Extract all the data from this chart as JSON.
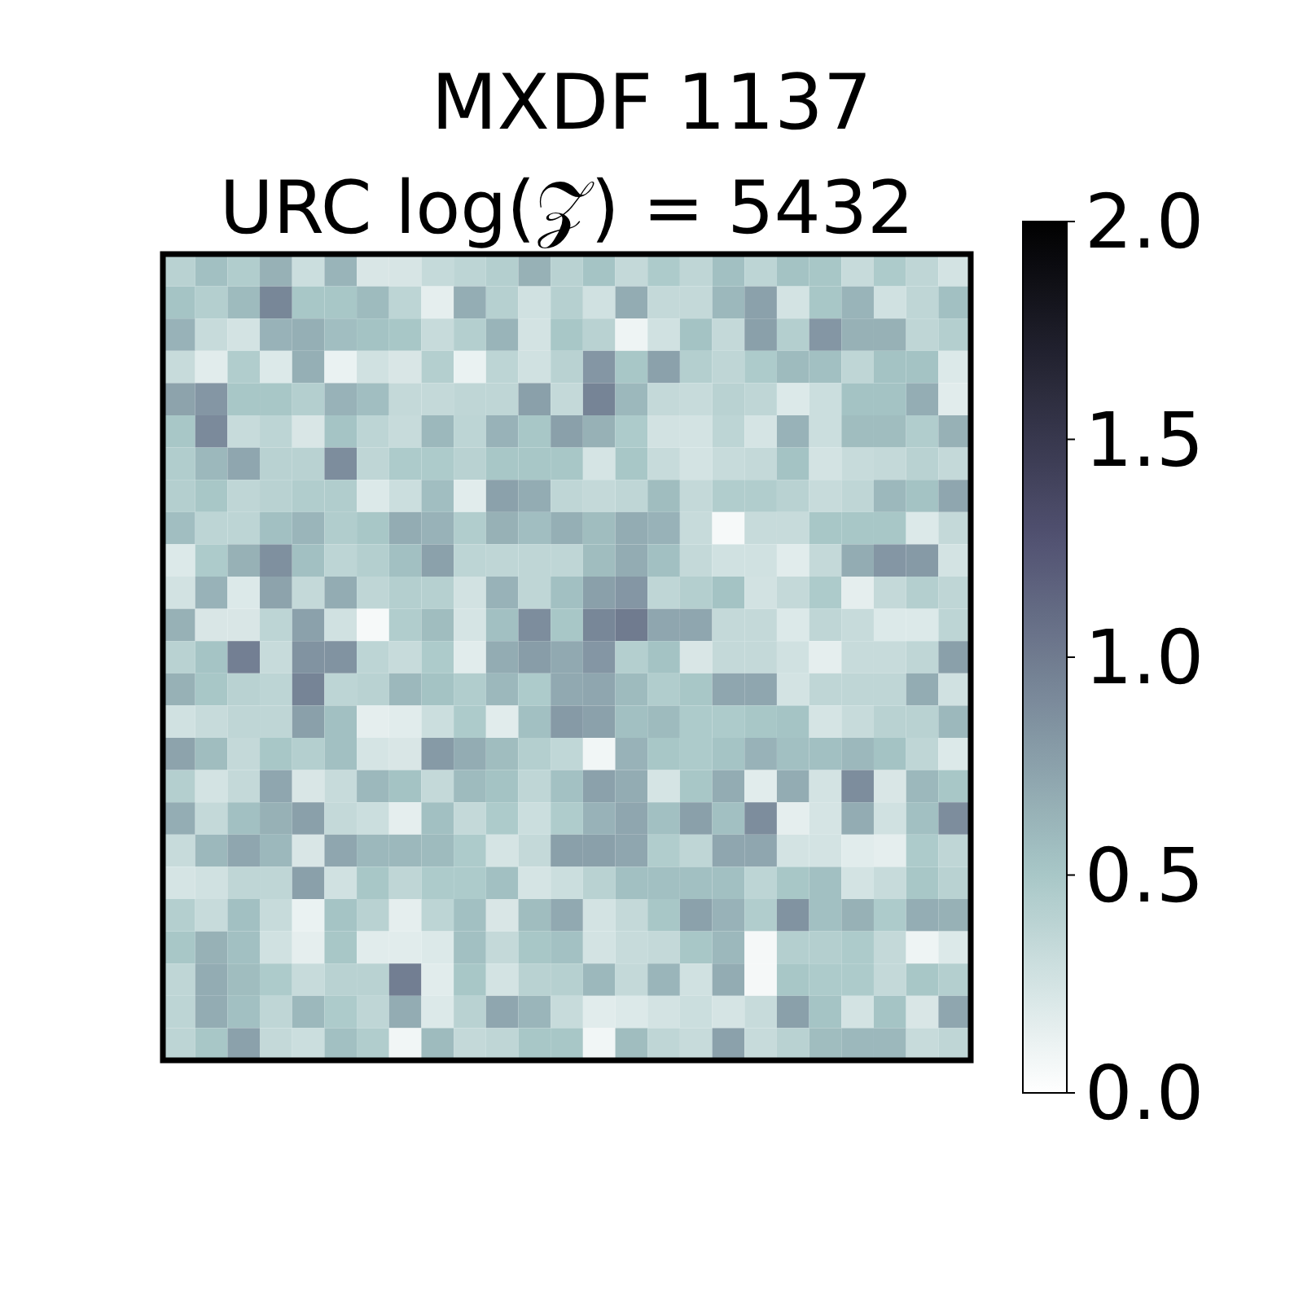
{
  "chart_data": {
    "type": "heatmap",
    "title": "MXDF 1137",
    "subtitle": "URC log(𝒵) = 5432",
    "categories": [
      null,
      null,
      null,
      null,
      null,
      null,
      null,
      null,
      null,
      null,
      null,
      null,
      null,
      null,
      null,
      null,
      null,
      null,
      null,
      null,
      null,
      null,
      null,
      null,
      null
    ],
    "y_categories": [
      null,
      null,
      null,
      null,
      null,
      null,
      null,
      null,
      null,
      null,
      null,
      null,
      null,
      null,
      null,
      null,
      null,
      null,
      null,
      null,
      null,
      null,
      null,
      null,
      null
    ],
    "cells": [
      [
        0.4,
        0.55,
        0.45,
        0.65,
        0.3,
        0.63,
        0.22,
        0.23,
        0.33,
        0.38,
        0.43,
        0.65,
        0.4,
        0.52,
        0.34,
        0.47,
        0.37,
        0.55,
        0.38,
        0.53,
        0.5,
        0.32,
        0.47,
        0.37,
        0.25
      ],
      [
        0.52,
        0.43,
        0.58,
        0.92,
        0.5,
        0.5,
        0.58,
        0.38,
        0.15,
        0.67,
        0.42,
        0.27,
        0.42,
        0.27,
        0.68,
        0.34,
        0.34,
        0.6,
        0.75,
        0.25,
        0.5,
        0.63,
        0.27,
        0.37,
        0.55
      ],
      [
        0.64,
        0.32,
        0.25,
        0.64,
        0.66,
        0.56,
        0.53,
        0.5,
        0.32,
        0.43,
        0.63,
        0.25,
        0.5,
        0.4,
        0.1,
        0.27,
        0.53,
        0.34,
        0.76,
        0.43,
        0.82,
        0.65,
        0.65,
        0.37,
        0.43
      ],
      [
        0.32,
        0.17,
        0.45,
        0.2,
        0.66,
        0.12,
        0.27,
        0.22,
        0.43,
        0.12,
        0.38,
        0.27,
        0.4,
        0.82,
        0.5,
        0.75,
        0.43,
        0.37,
        0.47,
        0.58,
        0.55,
        0.37,
        0.53,
        0.53,
        0.2
      ],
      [
        0.74,
        0.82,
        0.5,
        0.5,
        0.43,
        0.64,
        0.56,
        0.34,
        0.34,
        0.37,
        0.37,
        0.76,
        0.34,
        0.94,
        0.6,
        0.34,
        0.32,
        0.4,
        0.37,
        0.2,
        0.3,
        0.53,
        0.53,
        0.67,
        0.17
      ],
      [
        0.5,
        0.9,
        0.32,
        0.38,
        0.22,
        0.52,
        0.38,
        0.32,
        0.6,
        0.38,
        0.64,
        0.5,
        0.76,
        0.65,
        0.47,
        0.26,
        0.25,
        0.38,
        0.24,
        0.64,
        0.3,
        0.57,
        0.57,
        0.45,
        0.65
      ],
      [
        0.45,
        0.6,
        0.72,
        0.4,
        0.4,
        0.88,
        0.37,
        0.47,
        0.47,
        0.4,
        0.5,
        0.5,
        0.5,
        0.24,
        0.5,
        0.32,
        0.25,
        0.32,
        0.34,
        0.53,
        0.25,
        0.32,
        0.34,
        0.4,
        0.34
      ],
      [
        0.43,
        0.5,
        0.37,
        0.4,
        0.45,
        0.45,
        0.2,
        0.3,
        0.56,
        0.17,
        0.75,
        0.68,
        0.37,
        0.34,
        0.37,
        0.57,
        0.34,
        0.45,
        0.45,
        0.4,
        0.32,
        0.37,
        0.6,
        0.53,
        0.72
      ],
      [
        0.56,
        0.38,
        0.38,
        0.55,
        0.62,
        0.45,
        0.5,
        0.68,
        0.64,
        0.45,
        0.65,
        0.56,
        0.66,
        0.57,
        0.68,
        0.64,
        0.32,
        0.05,
        0.32,
        0.32,
        0.5,
        0.5,
        0.5,
        0.2,
        0.34
      ],
      [
        0.2,
        0.47,
        0.65,
        0.86,
        0.55,
        0.38,
        0.43,
        0.55,
        0.75,
        0.38,
        0.37,
        0.37,
        0.37,
        0.57,
        0.68,
        0.55,
        0.34,
        0.27,
        0.27,
        0.17,
        0.34,
        0.68,
        0.82,
        0.8,
        0.25
      ],
      [
        0.26,
        0.64,
        0.2,
        0.74,
        0.34,
        0.68,
        0.37,
        0.43,
        0.42,
        0.26,
        0.64,
        0.37,
        0.55,
        0.76,
        0.82,
        0.37,
        0.43,
        0.53,
        0.26,
        0.34,
        0.47,
        0.15,
        0.34,
        0.43,
        0.37
      ],
      [
        0.65,
        0.22,
        0.22,
        0.38,
        0.75,
        0.27,
        0.05,
        0.45,
        0.57,
        0.24,
        0.55,
        0.88,
        0.5,
        0.92,
        1.0,
        0.72,
        0.72,
        0.34,
        0.34,
        0.2,
        0.37,
        0.32,
        0.2,
        0.2,
        0.38
      ],
      [
        0.4,
        0.52,
        0.97,
        0.32,
        0.84,
        0.84,
        0.38,
        0.32,
        0.47,
        0.17,
        0.68,
        0.78,
        0.7,
        0.82,
        0.43,
        0.53,
        0.22,
        0.34,
        0.34,
        0.27,
        0.15,
        0.32,
        0.32,
        0.37,
        0.76
      ],
      [
        0.65,
        0.5,
        0.4,
        0.38,
        0.94,
        0.38,
        0.4,
        0.6,
        0.53,
        0.45,
        0.6,
        0.47,
        0.7,
        0.72,
        0.58,
        0.45,
        0.5,
        0.72,
        0.72,
        0.25,
        0.37,
        0.37,
        0.37,
        0.68,
        0.27
      ],
      [
        0.27,
        0.32,
        0.37,
        0.37,
        0.76,
        0.55,
        0.15,
        0.17,
        0.3,
        0.47,
        0.17,
        0.55,
        0.8,
        0.75,
        0.55,
        0.58,
        0.47,
        0.47,
        0.5,
        0.52,
        0.24,
        0.32,
        0.4,
        0.4,
        0.6
      ],
      [
        0.74,
        0.57,
        0.34,
        0.5,
        0.43,
        0.55,
        0.24,
        0.22,
        0.8,
        0.68,
        0.57,
        0.43,
        0.36,
        0.08,
        0.64,
        0.5,
        0.47,
        0.52,
        0.64,
        0.55,
        0.55,
        0.6,
        0.53,
        0.37,
        0.2
      ],
      [
        0.43,
        0.25,
        0.34,
        0.72,
        0.22,
        0.32,
        0.6,
        0.53,
        0.34,
        0.58,
        0.53,
        0.37,
        0.54,
        0.75,
        0.68,
        0.24,
        0.5,
        0.68,
        0.17,
        0.68,
        0.25,
        0.88,
        0.22,
        0.6,
        0.5
      ],
      [
        0.67,
        0.34,
        0.55,
        0.65,
        0.76,
        0.34,
        0.3,
        0.15,
        0.55,
        0.34,
        0.47,
        0.3,
        0.46,
        0.64,
        0.72,
        0.55,
        0.76,
        0.55,
        0.88,
        0.15,
        0.24,
        0.68,
        0.27,
        0.55,
        0.88
      ],
      [
        0.32,
        0.6,
        0.72,
        0.6,
        0.22,
        0.72,
        0.6,
        0.6,
        0.58,
        0.47,
        0.24,
        0.34,
        0.76,
        0.76,
        0.72,
        0.45,
        0.37,
        0.72,
        0.72,
        0.25,
        0.25,
        0.17,
        0.15,
        0.47,
        0.37
      ],
      [
        0.24,
        0.27,
        0.37,
        0.37,
        0.76,
        0.27,
        0.5,
        0.37,
        0.47,
        0.47,
        0.55,
        0.24,
        0.3,
        0.4,
        0.55,
        0.55,
        0.55,
        0.55,
        0.38,
        0.5,
        0.55,
        0.25,
        0.32,
        0.5,
        0.4
      ],
      [
        0.43,
        0.32,
        0.55,
        0.32,
        0.12,
        0.52,
        0.4,
        0.15,
        0.38,
        0.55,
        0.22,
        0.57,
        0.7,
        0.25,
        0.34,
        0.5,
        0.75,
        0.64,
        0.45,
        0.84,
        0.55,
        0.65,
        0.47,
        0.67,
        0.65
      ],
      [
        0.5,
        0.65,
        0.55,
        0.27,
        0.15,
        0.5,
        0.17,
        0.17,
        0.2,
        0.55,
        0.34,
        0.5,
        0.54,
        0.25,
        0.32,
        0.34,
        0.5,
        0.6,
        0.06,
        0.43,
        0.43,
        0.47,
        0.34,
        0.1,
        0.2
      ],
      [
        0.37,
        0.68,
        0.57,
        0.47,
        0.32,
        0.4,
        0.4,
        0.98,
        0.17,
        0.5,
        0.25,
        0.4,
        0.42,
        0.6,
        0.34,
        0.62,
        0.27,
        0.68,
        0.06,
        0.5,
        0.47,
        0.47,
        0.34,
        0.5,
        0.43
      ],
      [
        0.38,
        0.68,
        0.55,
        0.37,
        0.6,
        0.47,
        0.37,
        0.68,
        0.2,
        0.4,
        0.72,
        0.62,
        0.32,
        0.17,
        0.2,
        0.25,
        0.3,
        0.24,
        0.32,
        0.76,
        0.52,
        0.25,
        0.52,
        0.22,
        0.72
      ],
      [
        0.38,
        0.5,
        0.75,
        0.34,
        0.3,
        0.55,
        0.45,
        0.08,
        0.58,
        0.34,
        0.37,
        0.5,
        0.5,
        0.08,
        0.57,
        0.37,
        0.32,
        0.75,
        0.32,
        0.4,
        0.57,
        0.6,
        0.6,
        0.32,
        0.37
      ]
    ],
    "clim": [
      0,
      2
    ],
    "cticks": [
      {
        "value": 0,
        "label": "0.0"
      },
      0.5,
      {
        "value": 1,
        "label": "1.0"
      },
      1.5,
      {
        "value": 2,
        "label": "2.0"
      }
    ]
  }
}
